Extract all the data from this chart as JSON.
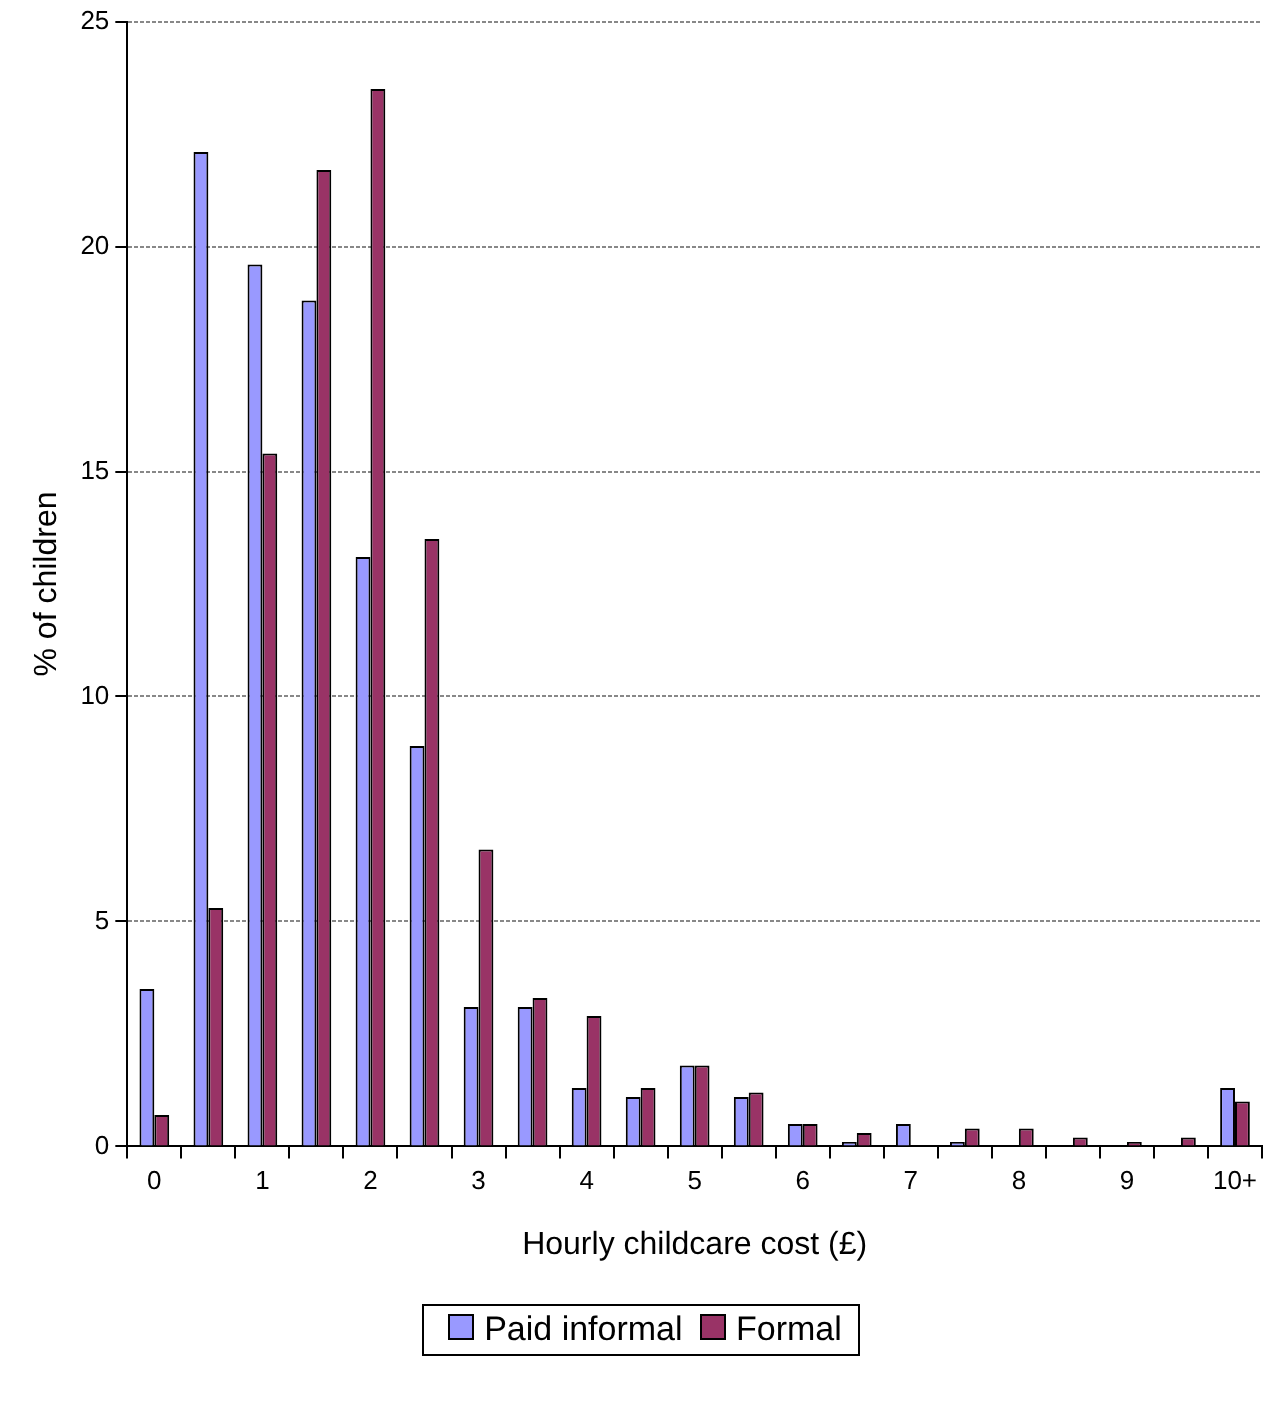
{
  "chart_data": {
    "type": "bar",
    "xlabel": "Hourly childcare cost (£)",
    "ylabel": "% of children",
    "categories": [
      "0",
      null,
      "1",
      null,
      "2",
      null,
      "3",
      null,
      "4",
      null,
      "5",
      null,
      "6",
      null,
      "7",
      null,
      "8",
      null,
      "9",
      null,
      "10+"
    ],
    "series": [
      {
        "name": "Paid informal",
        "color": "#9999ff",
        "values": [
          3.5,
          22.1,
          19.6,
          18.8,
          13.1,
          8.9,
          3.1,
          3.1,
          1.3,
          1.1,
          1.8,
          1.1,
          0.5,
          0.1,
          0.5,
          0.1,
          0,
          0,
          0,
          0,
          1.3
        ]
      },
      {
        "name": "Formal",
        "color": "#993366",
        "values": [
          0.7,
          5.3,
          15.4,
          21.7,
          23.5,
          13.5,
          6.6,
          3.3,
          2.9,
          1.3,
          1.8,
          1.2,
          0.5,
          0.3,
          0,
          0.4,
          0.4,
          0.2,
          0.1,
          0.2,
          1.0
        ]
      }
    ],
    "ylim": [
      0,
      25
    ],
    "yticks": [
      0,
      5,
      10,
      15,
      20,
      25
    ],
    "grid": "y",
    "legend": "bottom"
  }
}
